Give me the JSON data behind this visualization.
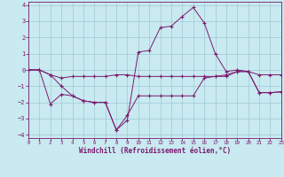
{
  "xlabel": "Windchill (Refroidissement éolien,°C)",
  "background_color": "#c8eaf0",
  "grid_color": "#a0c8d8",
  "line_color": "#7b1a6e",
  "xlim": [
    0,
    23
  ],
  "ylim": [
    -4.2,
    4.2
  ],
  "yticks": [
    -4,
    -3,
    -2,
    -1,
    0,
    1,
    2,
    3,
    4
  ],
  "xticks": [
    0,
    1,
    2,
    3,
    4,
    5,
    6,
    7,
    8,
    9,
    10,
    11,
    12,
    13,
    14,
    15,
    16,
    17,
    18,
    19,
    20,
    21,
    22,
    23
  ],
  "line1_x": [
    0,
    1,
    2,
    3,
    4,
    5,
    6,
    7,
    8,
    9,
    10,
    11,
    12,
    13,
    14,
    15,
    16,
    17,
    18,
    19,
    20,
    21,
    22,
    23
  ],
  "line1_y": [
    0.0,
    0.0,
    -0.3,
    -0.5,
    -0.4,
    -0.4,
    -0.4,
    -0.4,
    -0.3,
    -0.3,
    -0.4,
    -0.4,
    -0.4,
    -0.4,
    -0.4,
    -0.4,
    -0.4,
    -0.4,
    -0.3,
    -0.1,
    -0.1,
    -0.3,
    -0.3,
    -0.3
  ],
  "line2_x": [
    0,
    1,
    2,
    3,
    4,
    5,
    6,
    7,
    8,
    9,
    10,
    11,
    12,
    13,
    14,
    15,
    16,
    17,
    18,
    19,
    20,
    21,
    22,
    23
  ],
  "line2_y": [
    0.0,
    0.0,
    -2.1,
    -1.5,
    -1.6,
    -1.9,
    -2.0,
    -2.0,
    -3.7,
    -2.8,
    -1.6,
    -1.6,
    -1.6,
    -1.6,
    -1.6,
    -1.6,
    -0.5,
    -0.4,
    -0.4,
    -0.1,
    -0.1,
    -1.4,
    -1.4,
    -1.35
  ],
  "line3_x": [
    0,
    1,
    2,
    3,
    4,
    5,
    6,
    7,
    8,
    9,
    10,
    11,
    12,
    13,
    14,
    15,
    16,
    17,
    18,
    19,
    20,
    21,
    22,
    23
  ],
  "line3_y": [
    0.0,
    0.0,
    -0.3,
    -1.0,
    -1.6,
    -1.9,
    -2.0,
    -2.0,
    -3.7,
    -3.1,
    1.1,
    1.2,
    2.6,
    2.7,
    3.3,
    3.85,
    2.9,
    1.0,
    -0.1,
    -0.0,
    -0.1,
    -1.4,
    -1.4,
    -1.35
  ]
}
